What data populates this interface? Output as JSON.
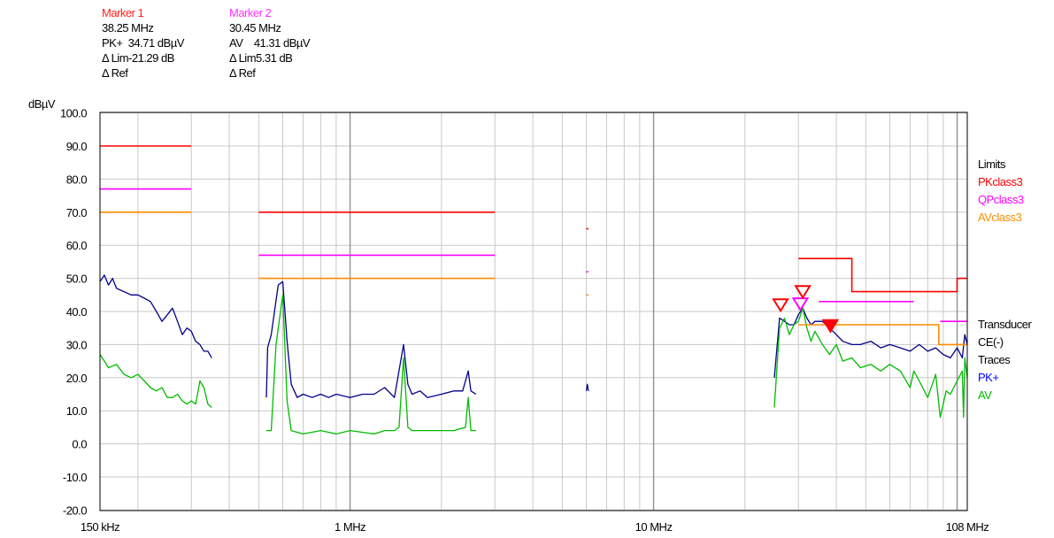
{
  "markers": [
    {
      "title": "Marker 1",
      "freq": "38.25 MHz",
      "reading": "PK+  34.71 dBµV",
      "lim": "Δ Lim-21.29 dB",
      "ref": "Δ Ref",
      "color": "#ff1f1f"
    },
    {
      "title": "Marker 2",
      "freq": "30.45 MHz",
      "reading": "AV    41.31 dBµV",
      "lim": "Δ Lim5.31 dB",
      "ref": "Δ Ref",
      "color": "#ff33ff"
    }
  ],
  "legend": {
    "limits_heading": "Limits",
    "limits": [
      {
        "label": "PKclass3",
        "color": "#ff0000"
      },
      {
        "label": "QPclass3",
        "color": "#ff00ff"
      },
      {
        "label": "AVclass3",
        "color": "#ff8c00"
      }
    ],
    "transducer_heading": "Transducer",
    "transducer": "CE(-)",
    "traces_heading": "Traces",
    "traces": [
      {
        "label": "PK+",
        "color": "#0000ff"
      },
      {
        "label": "AV",
        "color": "#00bb00"
      }
    ]
  },
  "chart_data": {
    "type": "line",
    "ylabel": "dBµV",
    "ylim": [
      -20,
      100
    ],
    "y_ticks": [
      "100.0",
      "90.0",
      "80.0",
      "70.0",
      "60.0",
      "50.0",
      "40.0",
      "30.0",
      "20.0",
      "10.0",
      "0.0",
      "-10.0",
      "-20.0"
    ],
    "x_scale": "log",
    "x_unit": "MHz",
    "xlim": [
      0.15,
      108
    ],
    "x_ticks": [
      {
        "value": 0.15,
        "label": "150 kHz"
      },
      {
        "value": 1,
        "label": "1 MHz"
      },
      {
        "value": 10,
        "label": "10 MHz"
      },
      {
        "value": 108,
        "label": "108 MHz"
      }
    ],
    "grid": true,
    "series": [
      {
        "name": "PK+",
        "color": "#00008b",
        "segments": [
          [
            [
              0.15,
              49
            ],
            [
              0.155,
              51
            ],
            [
              0.16,
              48
            ],
            [
              0.165,
              50
            ],
            [
              0.17,
              47
            ],
            [
              0.18,
              46
            ],
            [
              0.19,
              45
            ],
            [
              0.2,
              45
            ],
            [
              0.21,
              44
            ],
            [
              0.22,
              43
            ],
            [
              0.23,
              40
            ],
            [
              0.24,
              37
            ],
            [
              0.25,
              39
            ],
            [
              0.26,
              41
            ],
            [
              0.27,
              37
            ],
            [
              0.28,
              33
            ],
            [
              0.29,
              35
            ],
            [
              0.3,
              34
            ],
            [
              0.31,
              31
            ],
            [
              0.32,
              30
            ],
            [
              0.33,
              28
            ],
            [
              0.34,
              28
            ],
            [
              0.35,
              26
            ]
          ],
          [
            [
              0.53,
              14
            ],
            [
              0.535,
              29
            ],
            [
              0.55,
              33
            ],
            [
              0.58,
              48
            ],
            [
              0.6,
              49
            ],
            [
              0.62,
              31
            ],
            [
              0.64,
              18
            ],
            [
              0.67,
              14
            ],
            [
              0.7,
              15
            ],
            [
              0.75,
              14
            ],
            [
              0.8,
              15
            ],
            [
              0.85,
              14
            ],
            [
              0.9,
              15
            ],
            [
              1.0,
              14
            ],
            [
              1.1,
              15
            ],
            [
              1.2,
              15
            ],
            [
              1.3,
              17
            ],
            [
              1.4,
              14
            ],
            [
              1.5,
              30
            ],
            [
              1.55,
              18
            ],
            [
              1.6,
              15
            ],
            [
              1.7,
              16
            ],
            [
              1.8,
              14
            ],
            [
              2.0,
              15
            ],
            [
              2.2,
              16
            ],
            [
              2.35,
              16
            ],
            [
              2.45,
              22
            ],
            [
              2.5,
              16
            ],
            [
              2.6,
              15
            ]
          ],
          [
            [
              6.0,
              16
            ],
            [
              6.05,
              18
            ],
            [
              6.1,
              16
            ]
          ],
          [
            [
              25,
              20
            ],
            [
              26,
              38
            ],
            [
              27,
              37
            ],
            [
              28,
              36
            ],
            [
              29,
              36
            ],
            [
              30,
              39
            ],
            [
              31,
              41
            ],
            [
              32,
              38
            ],
            [
              33,
              36
            ],
            [
              34,
              37
            ],
            [
              36,
              37
            ],
            [
              38,
              35
            ],
            [
              40,
              33
            ],
            [
              42,
              31
            ],
            [
              45,
              30
            ],
            [
              48,
              30
            ],
            [
              52,
              31
            ],
            [
              56,
              29
            ],
            [
              60,
              30
            ],
            [
              65,
              29
            ],
            [
              70,
              28
            ],
            [
              75,
              30
            ],
            [
              80,
              28
            ],
            [
              85,
              29
            ],
            [
              90,
              27
            ],
            [
              95,
              26
            ],
            [
              100,
              29
            ],
            [
              104,
              26
            ],
            [
              106,
              33
            ],
            [
              108,
              30
            ]
          ]
        ]
      },
      {
        "name": "AV",
        "color": "#00bb00",
        "segments": [
          [
            [
              0.15,
              27
            ],
            [
              0.155,
              25
            ],
            [
              0.16,
              23
            ],
            [
              0.17,
              24
            ],
            [
              0.18,
              21
            ],
            [
              0.19,
              20
            ],
            [
              0.2,
              21
            ],
            [
              0.21,
              19
            ],
            [
              0.22,
              17
            ],
            [
              0.23,
              16
            ],
            [
              0.24,
              17
            ],
            [
              0.25,
              14
            ],
            [
              0.26,
              14
            ],
            [
              0.27,
              15
            ],
            [
              0.28,
              13
            ],
            [
              0.29,
              12
            ],
            [
              0.3,
              13
            ],
            [
              0.31,
              12
            ],
            [
              0.32,
              19
            ],
            [
              0.33,
              17
            ],
            [
              0.34,
              12
            ],
            [
              0.35,
              11
            ]
          ],
          [
            [
              0.53,
              4
            ],
            [
              0.55,
              4
            ],
            [
              0.57,
              30
            ],
            [
              0.6,
              45
            ],
            [
              0.62,
              13
            ],
            [
              0.64,
              4
            ],
            [
              0.7,
              3
            ],
            [
              0.8,
              4
            ],
            [
              0.9,
              3
            ],
            [
              1.0,
              4
            ],
            [
              1.2,
              3
            ],
            [
              1.3,
              4
            ],
            [
              1.4,
              4
            ],
            [
              1.45,
              5
            ],
            [
              1.5,
              26
            ],
            [
              1.55,
              5
            ],
            [
              1.6,
              4
            ],
            [
              1.8,
              4
            ],
            [
              2.0,
              4
            ],
            [
              2.2,
              4
            ],
            [
              2.4,
              5
            ],
            [
              2.45,
              14
            ],
            [
              2.5,
              4
            ],
            [
              2.6,
              4
            ]
          ],
          [
            [
              25,
              11
            ],
            [
              26,
              35
            ],
            [
              27,
              38
            ],
            [
              28,
              33
            ],
            [
              29,
              36
            ],
            [
              30,
              37
            ],
            [
              31,
              41
            ],
            [
              32,
              35
            ],
            [
              33,
              31
            ],
            [
              34,
              34
            ],
            [
              36,
              30
            ],
            [
              38,
              27
            ],
            [
              40,
              30
            ],
            [
              42,
              25
            ],
            [
              45,
              26
            ],
            [
              48,
              23
            ],
            [
              52,
              24
            ],
            [
              56,
              22
            ],
            [
              60,
              24
            ],
            [
              65,
              22
            ],
            [
              70,
              17
            ],
            [
              72,
              22
            ],
            [
              75,
              19
            ],
            [
              80,
              14
            ],
            [
              85,
              21
            ],
            [
              88,
              8
            ],
            [
              92,
              16
            ],
            [
              95,
              15
            ],
            [
              100,
              19
            ],
            [
              104,
              22
            ],
            [
              105,
              8
            ],
            [
              106,
              26
            ],
            [
              108,
              20
            ]
          ]
        ]
      },
      {
        "name": "PKclass3",
        "color": "#ff0000",
        "segments": [
          [
            [
              0.15,
              90
            ],
            [
              0.3,
              90
            ]
          ],
          [
            [
              0.5,
              70
            ],
            [
              3.0,
              70
            ]
          ],
          [
            [
              6.0,
              65
            ],
            [
              6.1,
              65
            ]
          ],
          [
            [
              30,
              56
            ],
            [
              33,
              56
            ],
            [
              33,
              56
            ],
            [
              45,
              56
            ],
            [
              45,
              46
            ],
            [
              100,
              46
            ],
            [
              100,
              50
            ],
            [
              108,
              50
            ]
          ]
        ]
      },
      {
        "name": "QPclass3",
        "color": "#ff00ff",
        "segments": [
          [
            [
              0.15,
              77
            ],
            [
              0.3,
              77
            ]
          ],
          [
            [
              0.5,
              57
            ],
            [
              3.0,
              57
            ]
          ],
          [
            [
              6.0,
              52
            ],
            [
              6.1,
              52
            ]
          ],
          [
            [
              35,
              43
            ],
            [
              72,
              43
            ]
          ],
          [
            [
              88,
              37
            ],
            [
              108,
              37
            ]
          ]
        ]
      },
      {
        "name": "AVclass3",
        "color": "#ff8c00",
        "segments": [
          [
            [
              0.15,
              70
            ],
            [
              0.3,
              70
            ]
          ],
          [
            [
              0.5,
              50
            ],
            [
              3.0,
              50
            ]
          ],
          [
            [
              6.0,
              45
            ],
            [
              6.1,
              45
            ]
          ],
          [
            [
              30,
              36
            ],
            [
              87,
              36
            ],
            [
              87,
              30
            ],
            [
              108,
              30
            ]
          ]
        ]
      }
    ],
    "markers": [
      {
        "label": "M1",
        "x": 38.25,
        "y": 34.71,
        "color": "#ff0000"
      },
      {
        "label": "M2",
        "x": 30.45,
        "y": 41.31,
        "color": "#ff00ff"
      }
    ]
  }
}
